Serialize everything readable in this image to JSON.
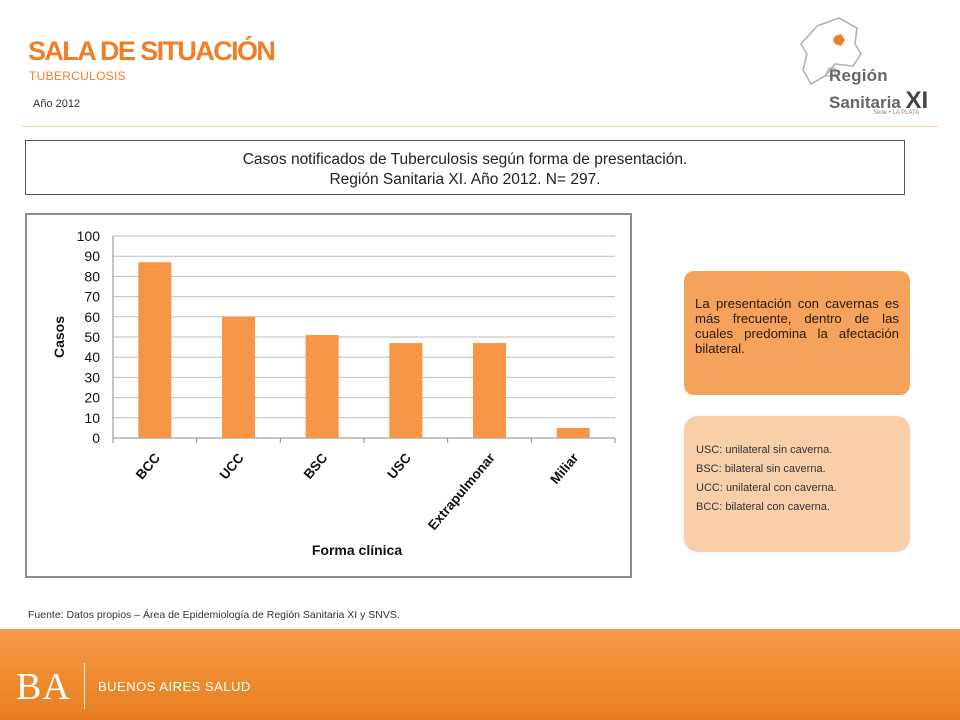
{
  "header": {
    "title": "SALA DE SITUACIÓN",
    "subtitle": "TUBERCULOSIS",
    "year": "Año 2012"
  },
  "logo": {
    "line1": "Región",
    "line2": "Sanitaria",
    "roman": "XI",
    "sede": "Sede • LA PLATA",
    "accent_color": "#f07e26"
  },
  "title_box": {
    "line1": "Casos notificados de Tuberculosis según forma de presentación.",
    "line2": "Región Sanitaria XI. Año 2012. N= 297."
  },
  "chart_data": {
    "type": "bar",
    "categories": [
      "BCC",
      "UCC",
      "BSC",
      "USC",
      "Extrapulmonar",
      "Miliar"
    ],
    "values": [
      87,
      60,
      51,
      47,
      47,
      5
    ],
    "xlabel": "Forma clínica",
    "ylabel": "Casos",
    "ylim": [
      0,
      100
    ],
    "yticks": [
      0,
      10,
      20,
      30,
      40,
      50,
      60,
      70,
      80,
      90,
      100
    ],
    "grid": true,
    "bar_color": "#f79646",
    "legend": "none"
  },
  "note": {
    "text": "La presentación con cavernas es más frecuente, dentro de las cuales predomina la afectación bilateral."
  },
  "legend_box": {
    "lines": [
      "USC: unilateral sin caverna.",
      "BSC: bilateral sin caverna.",
      "UCC: unilateral con caverna.",
      "BCC: bilateral con caverna."
    ]
  },
  "source": "Fuente: Datos propios – Área de Epidemiología de Región Sanitaria XI y SNVS.",
  "footer": {
    "brand": "BA",
    "text": "BUENOS AIRES SALUD",
    "color": "#ef8b2f"
  }
}
